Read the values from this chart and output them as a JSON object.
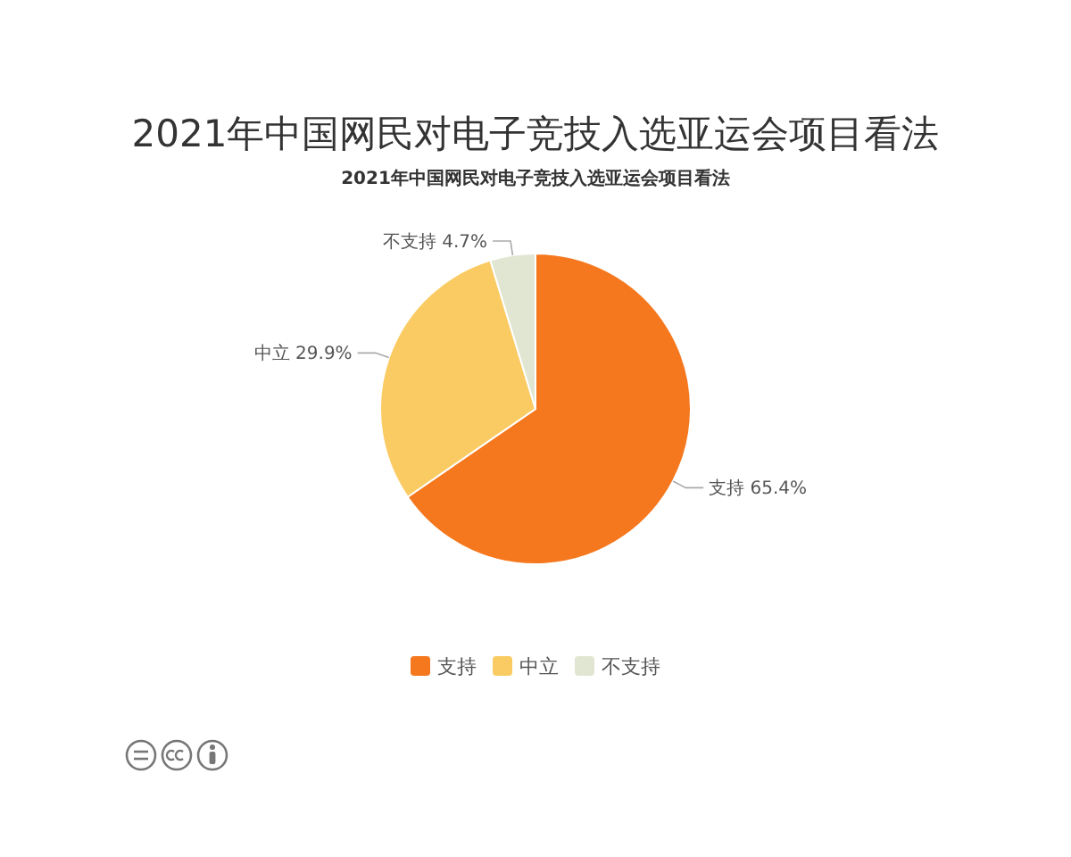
{
  "chart_data": {
    "type": "pie",
    "title": "2021年中国网民对电子竞技入选亚运会项目看法",
    "subtitle": "2021年中国网民对电子竞技入选亚运会项目看法",
    "categories": [
      "支持",
      "中立",
      "不支持"
    ],
    "values": [
      65.4,
      29.9,
      4.7
    ],
    "colors": [
      "#f5781e",
      "#fbcb63",
      "#e1e6d3"
    ],
    "value_labels": [
      "支持 65.4%",
      "中立 29.9%",
      "不支持 4.7%"
    ],
    "legend": "bottom"
  }
}
